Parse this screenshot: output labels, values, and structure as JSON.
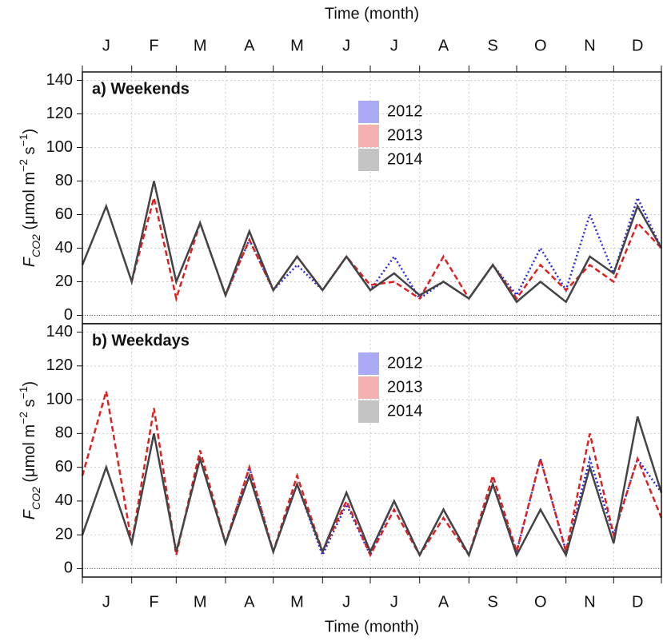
{
  "chart_data": [
    {
      "type": "line",
      "title": "a) Weekends",
      "xlabel": "Time (month)",
      "xaxis_position": "top",
      "ylabel": [
        "F",
        "CO2",
        " (μmol m",
        "−2",
        " s",
        "−1",
        ")"
      ],
      "x": [
        1,
        16,
        32,
        46,
        60,
        75,
        91,
        106,
        121,
        136,
        152,
        167,
        182,
        197,
        213,
        228,
        244,
        259,
        274,
        289,
        305,
        320,
        335,
        350,
        365
      ],
      "xlim": [
        1,
        365
      ],
      "xticks": [
        {
          "value": 16,
          "label": "J"
        },
        {
          "value": 46,
          "label": "F"
        },
        {
          "value": 75,
          "label": "M"
        },
        {
          "value": 106,
          "label": "A"
        },
        {
          "value": 136,
          "label": "M"
        },
        {
          "value": 167,
          "label": "J"
        },
        {
          "value": 197,
          "label": "J"
        },
        {
          "value": 228,
          "label": "A"
        },
        {
          "value": 259,
          "label": "S"
        },
        {
          "value": 289,
          "label": "O"
        },
        {
          "value": 320,
          "label": "N"
        },
        {
          "value": 350,
          "label": "D"
        }
      ],
      "xgrid": [
        1,
        32,
        60,
        91,
        121,
        152,
        182,
        213,
        244,
        274,
        305,
        335,
        365
      ],
      "ylim": [
        -5,
        145
      ],
      "yticks": [
        0,
        20,
        40,
        60,
        80,
        100,
        120,
        140
      ],
      "grid": true,
      "zero_line": 0,
      "series": [
        {
          "name": "2012",
          "color": "#2a2ae0",
          "band_color": "#aaaaf5",
          "style": "dotted",
          "values": [
            null,
            null,
            null,
            null,
            null,
            null,
            12,
            45,
            15,
            30,
            15,
            35,
            15,
            35,
            10,
            20,
            10,
            30,
            12,
            40,
            15,
            60,
            25,
            70,
            40
          ]
        },
        {
          "name": "2013",
          "color": "#e02020",
          "band_color": "#f5b0b0",
          "style": "dashed",
          "values": [
            null,
            null,
            20,
            70,
            10,
            55,
            12,
            45,
            15,
            35,
            15,
            35,
            18,
            20,
            10,
            35,
            10,
            30,
            10,
            30,
            15,
            30,
            20,
            55,
            40
          ]
        },
        {
          "name": "2014",
          "color": "#444444",
          "band_color": "#c4c4c4",
          "style": "solid",
          "values": [
            30,
            65,
            20,
            80,
            20,
            55,
            12,
            50,
            15,
            35,
            15,
            35,
            15,
            25,
            12,
            20,
            10,
            30,
            8,
            20,
            8,
            35,
            25,
            65,
            40
          ]
        }
      ]
    },
    {
      "type": "line",
      "title": "b) Weekdays",
      "xlabel": "Time (month)",
      "xaxis_position": "bottom",
      "ylabel": [
        "F",
        "CO2",
        " (μmol m",
        "−2",
        " s",
        "−1",
        ")"
      ],
      "x": [
        1,
        16,
        32,
        46,
        60,
        75,
        91,
        106,
        121,
        136,
        152,
        167,
        182,
        197,
        213,
        228,
        244,
        259,
        274,
        289,
        305,
        320,
        335,
        350,
        365
      ],
      "xlim": [
        1,
        365
      ],
      "xticks": [
        {
          "value": 16,
          "label": "J"
        },
        {
          "value": 46,
          "label": "F"
        },
        {
          "value": 75,
          "label": "M"
        },
        {
          "value": 106,
          "label": "A"
        },
        {
          "value": 136,
          "label": "M"
        },
        {
          "value": 167,
          "label": "J"
        },
        {
          "value": 197,
          "label": "J"
        },
        {
          "value": 228,
          "label": "A"
        },
        {
          "value": 259,
          "label": "S"
        },
        {
          "value": 289,
          "label": "O"
        },
        {
          "value": 320,
          "label": "N"
        },
        {
          "value": 350,
          "label": "D"
        }
      ],
      "xgrid": [
        1,
        32,
        60,
        91,
        121,
        152,
        182,
        213,
        244,
        274,
        305,
        335,
        365
      ],
      "ylim": [
        -5,
        145
      ],
      "yticks": [
        0,
        20,
        40,
        60,
        80,
        100,
        120,
        140
      ],
      "grid": true,
      "zero_line": 0,
      "series": [
        {
          "name": "2012",
          "color": "#2a2ae0",
          "band_color": "#aaaaf5",
          "style": "dotted",
          "values": [
            null,
            null,
            null,
            null,
            null,
            null,
            15,
            60,
            10,
            50,
            8,
            38,
            8,
            40,
            8,
            35,
            8,
            50,
            10,
            65,
            10,
            65,
            20,
            65,
            45
          ]
        },
        {
          "name": "2013",
          "color": "#e02020",
          "band_color": "#f5b0b0",
          "style": "dashed",
          "values": [
            55,
            105,
            15,
            95,
            8,
            70,
            15,
            60,
            10,
            55,
            10,
            40,
            8,
            35,
            8,
            30,
            8,
            55,
            10,
            65,
            10,
            80,
            20,
            65,
            30
          ]
        },
        {
          "name": "2014",
          "color": "#444444",
          "band_color": "#c4c4c4",
          "style": "solid",
          "values": [
            20,
            60,
            15,
            80,
            10,
            65,
            15,
            55,
            10,
            50,
            10,
            45,
            10,
            40,
            8,
            35,
            8,
            50,
            8,
            35,
            8,
            60,
            15,
            90,
            45
          ]
        }
      ]
    }
  ]
}
